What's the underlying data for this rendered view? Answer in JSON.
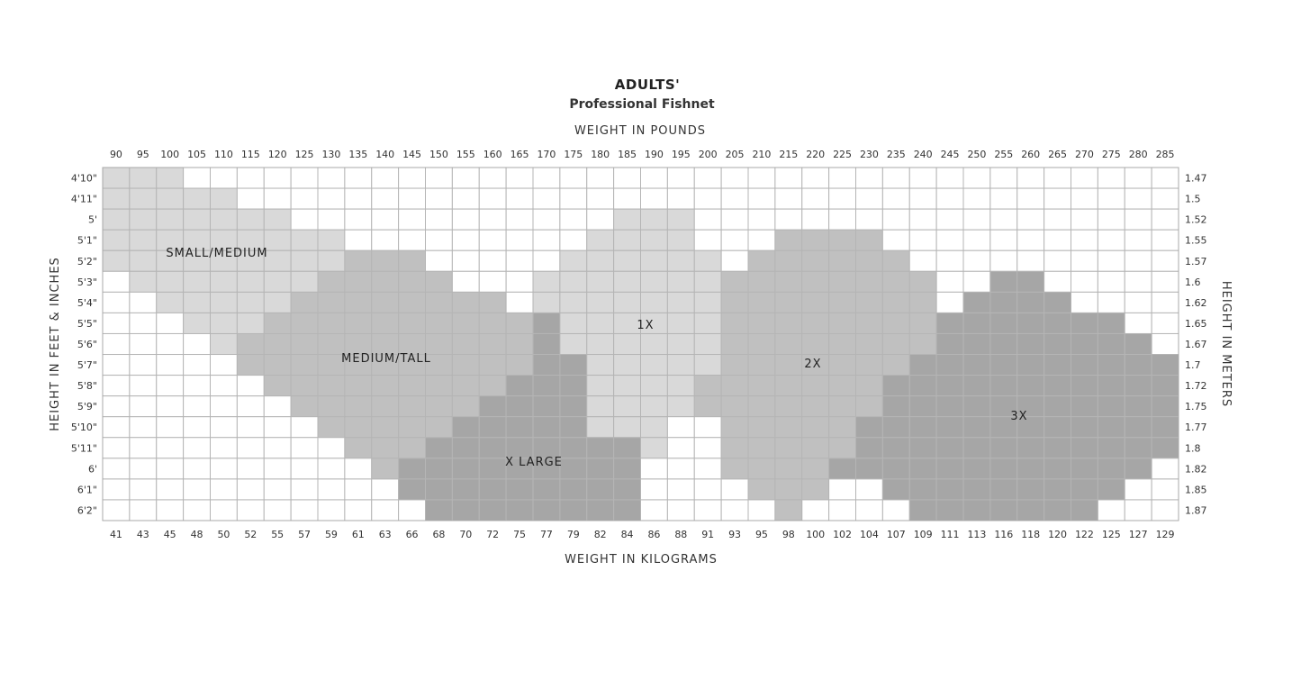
{
  "chart_data": {
    "type": "heatmap",
    "title": "ADULTS'",
    "subtitle": "Professional Fishnet",
    "x_top_label": "WEIGHT IN POUNDS",
    "x_bottom_label": "WEIGHT IN KILOGRAMS",
    "y_left_label": "HEIGHT IN FEET & INCHES",
    "y_right_label": "HEIGHT IN METERS",
    "weight_lbs": [
      90,
      95,
      100,
      105,
      110,
      115,
      120,
      125,
      130,
      135,
      140,
      145,
      150,
      155,
      160,
      165,
      170,
      175,
      180,
      185,
      190,
      195,
      200,
      205,
      210,
      215,
      220,
      225,
      230,
      235,
      240,
      245,
      250,
      255,
      260,
      265,
      270,
      275,
      280,
      285
    ],
    "weight_kg": [
      41,
      43,
      45,
      48,
      50,
      52,
      55,
      57,
      59,
      61,
      63,
      66,
      68,
      70,
      72,
      75,
      77,
      79,
      82,
      84,
      86,
      88,
      91,
      93,
      95,
      98,
      100,
      102,
      104,
      107,
      109,
      111,
      113,
      116,
      118,
      120,
      122,
      125,
      127,
      129
    ],
    "height_ft_in": [
      "4'10\"",
      "4'11\"",
      "5'",
      "5'1\"",
      "5'2\"",
      "5'3\"",
      "5'4\"",
      "5'5\"",
      "5'6\"",
      "5'7\"",
      "5'8\"",
      "5'9\"",
      "5'10\"",
      "5'11\"",
      "6'",
      "6'1\"",
      "6'2\""
    ],
    "height_m": [
      "1.47",
      "1.5",
      "1.52",
      "1.55",
      "1.57",
      "1.6",
      "1.62",
      "1.65",
      "1.67",
      "1.7",
      "1.72",
      "1.75",
      "1.77",
      "1.8",
      "1.82",
      "1.85",
      "1.87"
    ],
    "sizes": [
      {
        "code": "S",
        "name": "SMALL/MEDIUM",
        "color": "#d9d9d9"
      },
      {
        "code": "M",
        "name": "MEDIUM/TALL",
        "color": "#c0c0c0"
      },
      {
        "code": "X",
        "name": "X LARGE",
        "color": "#a6a6a6"
      },
      {
        "code": "1",
        "name": "1X",
        "color": "#d9d9d9"
      },
      {
        "code": "2",
        "name": "2X",
        "color": "#c0c0c0"
      },
      {
        "code": "3",
        "name": "3X",
        "color": "#a6a6a6"
      }
    ],
    "rows_by_height": [
      [
        [
          "S",
          "90",
          "100"
        ]
      ],
      [
        [
          "S",
          "90",
          "110"
        ]
      ],
      [
        [
          "S",
          "90",
          "120"
        ],
        [
          "1",
          "185",
          "195"
        ]
      ],
      [
        [
          "S",
          "90",
          "130"
        ],
        [
          "1",
          "180",
          "195"
        ],
        [
          "2",
          "215",
          "230"
        ]
      ],
      [
        [
          "S",
          "90",
          "130"
        ],
        [
          "M",
          "135",
          "145"
        ],
        [
          "1",
          "175",
          "200"
        ],
        [
          "2",
          "210",
          "235"
        ]
      ],
      [
        [
          "S",
          "95",
          "125"
        ],
        [
          "M",
          "130",
          "150"
        ],
        [
          "1",
          "170",
          "200"
        ],
        [
          "2",
          "205",
          "240"
        ],
        [
          "3",
          "255",
          "260"
        ]
      ],
      [
        [
          "S",
          "100",
          "120"
        ],
        [
          "M",
          "125",
          "160"
        ],
        [
          "1",
          "170",
          "200"
        ],
        [
          "2",
          "205",
          "240"
        ],
        [
          "3",
          "250",
          "265"
        ]
      ],
      [
        [
          "S",
          "105",
          "115"
        ],
        [
          "M",
          "120",
          "165"
        ],
        [
          "X",
          "170",
          "170"
        ],
        [
          "1",
          "175",
          "200"
        ],
        [
          "2",
          "205",
          "240"
        ],
        [
          "3",
          "245",
          "275"
        ]
      ],
      [
        [
          "S",
          "110",
          "110"
        ],
        [
          "M",
          "115",
          "165"
        ],
        [
          "X",
          "170",
          "170"
        ],
        [
          "1",
          "175",
          "200"
        ],
        [
          "2",
          "205",
          "240"
        ],
        [
          "3",
          "245",
          "280"
        ]
      ],
      [
        [
          "M",
          "115",
          "165"
        ],
        [
          "X",
          "170",
          "175"
        ],
        [
          "1",
          "180",
          "200"
        ],
        [
          "2",
          "205",
          "235"
        ],
        [
          "3",
          "240",
          "285"
        ]
      ],
      [
        [
          "M",
          "120",
          "160"
        ],
        [
          "X",
          "165",
          "175"
        ],
        [
          "1",
          "180",
          "195"
        ],
        [
          "2",
          "200",
          "230"
        ],
        [
          "3",
          "235",
          "285"
        ]
      ],
      [
        [
          "M",
          "125",
          "155"
        ],
        [
          "X",
          "160",
          "175"
        ],
        [
          "1",
          "180",
          "195"
        ],
        [
          "2",
          "200",
          "230"
        ],
        [
          "3",
          "235",
          "285"
        ]
      ],
      [
        [
          "M",
          "130",
          "150"
        ],
        [
          "X",
          "155",
          "175"
        ],
        [
          "1",
          "180",
          "190"
        ],
        [
          "2",
          "205",
          "225"
        ],
        [
          "3",
          "230",
          "285"
        ]
      ],
      [
        [
          "M",
          "135",
          "145"
        ],
        [
          "X",
          "150",
          "185"
        ],
        [
          "1",
          "190",
          "190"
        ],
        [
          "2",
          "205",
          "225"
        ],
        [
          "3",
          "230",
          "285"
        ]
      ],
      [
        [
          "M",
          "140",
          "140"
        ],
        [
          "X",
          "145",
          "185"
        ],
        [
          "2",
          "205",
          "220"
        ],
        [
          "3",
          "225",
          "280"
        ]
      ],
      [
        [
          "X",
          "145",
          "185"
        ],
        [
          "2",
          "210",
          "220"
        ],
        [
          "3",
          "235",
          "275"
        ]
      ],
      [
        [
          "X",
          "150",
          "185"
        ],
        [
          "2",
          "215",
          "215"
        ],
        [
          "3",
          "240",
          "270"
        ]
      ]
    ],
    "grid": true,
    "grid_color": "#b5b5b5"
  }
}
